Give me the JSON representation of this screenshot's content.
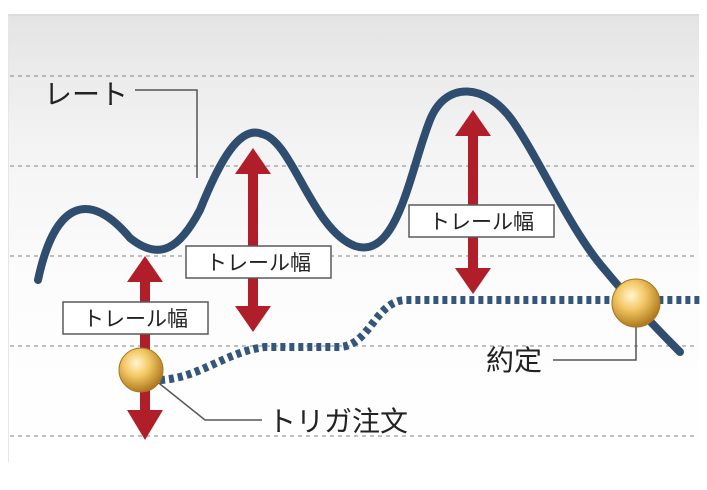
{
  "labels": {
    "rate": "レート",
    "trail_width": "トレール幅",
    "trigger_order": "トリガ注文",
    "execution": "約定"
  },
  "colors": {
    "rate_line": "#2f4d6e",
    "trail_line": "#33567a",
    "arrow": "#b01e2a",
    "grid": "#9a9a9a",
    "marker_fill": "#e8b84a",
    "label_border": "#5a5a5a",
    "text": "#222222"
  }
}
